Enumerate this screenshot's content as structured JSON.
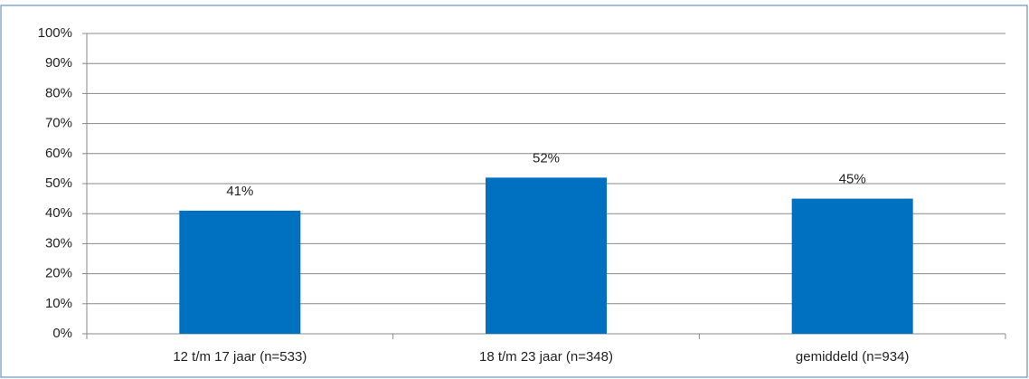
{
  "chart_data": {
    "type": "bar",
    "categories": [
      "12 t/m 17 jaar (n=533)",
      "18 t/m 23 jaar (n=348)",
      "gemiddeld (n=934)"
    ],
    "values": [
      41,
      52,
      45
    ],
    "value_labels": [
      "41%",
      "52%",
      "45%"
    ],
    "color": "#0070c0",
    "ylim": [
      0,
      100
    ],
    "yticks": [
      {
        "value": 0,
        "label": "0%"
      },
      {
        "value": 10,
        "label": "10%"
      },
      {
        "value": 20,
        "label": "20%"
      },
      {
        "value": 30,
        "label": "30%"
      },
      {
        "value": 40,
        "label": "40%"
      },
      {
        "value": 50,
        "label": "50%"
      },
      {
        "value": 60,
        "label": "60%"
      },
      {
        "value": 70,
        "label": "70%"
      },
      {
        "value": 80,
        "label": "80%"
      },
      {
        "value": 90,
        "label": "90%"
      },
      {
        "value": 100,
        "label": "100%"
      }
    ],
    "grid": true
  }
}
